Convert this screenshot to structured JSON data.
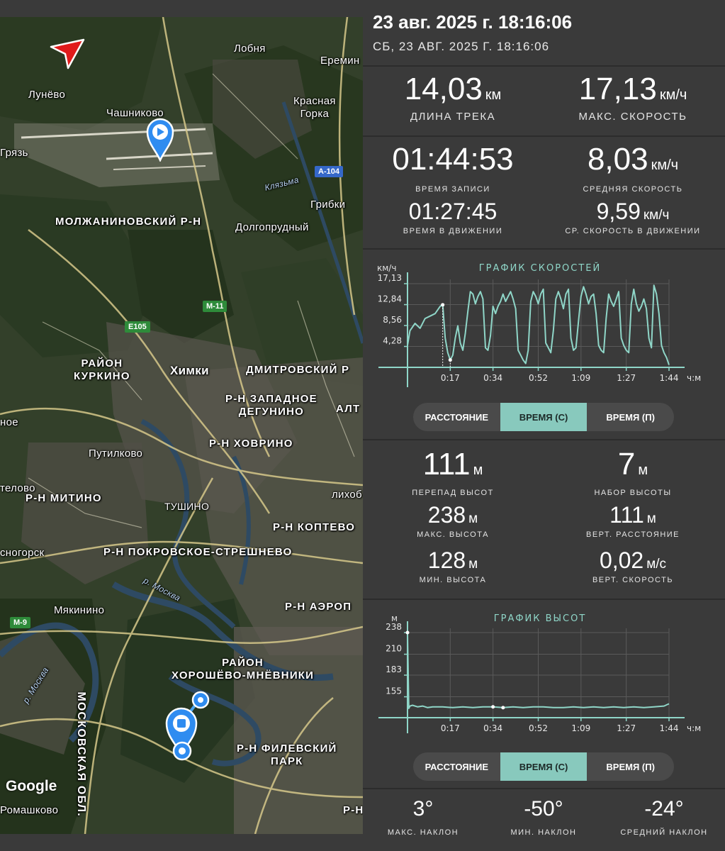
{
  "header": {
    "datetime": "23 авг. 2025 г. 18:16:06",
    "sub_datetime": "СБ, 23 АВГ. 2025 Г. 18:16:06"
  },
  "map": {
    "labels": {
      "lobnya": "Лобня",
      "eremino": "Еремин",
      "lunevo": "Лунёво",
      "chashnikovo": "Чашниково",
      "krasnaya_gorka": "Красная\nГорка",
      "gryaz": "Грязь",
      "klyazma": "Клязьма",
      "gribki": "Грибки",
      "molzhaninovsky": "МОЛЖАНИНОВСКИЙ Р-Н",
      "dolgoprudny": "Долгопрудный",
      "kurkino": "РАЙОН\nКУРКИНО",
      "khimki": "Химки",
      "dmitrovsky": "ДМИТРОВСКИЙ Р",
      "zapadnoe_degunino": "Р-Н ЗАПАДНОЕ\nДЕГУНИНО",
      "alt": "АЛТ",
      "noe": "ное",
      "putilkovo": "Путилково",
      "khovrino": "Р-Н ХОВРИНО",
      "telovo": "телово",
      "mitino": "Р-Н МИТИНО",
      "likhob": "лихоб",
      "tushino": "ТУШИНО",
      "koptevo": "Р-Н КОПТЕВО",
      "snogorsk": "сногорск",
      "pokrovskoe": "Р-Н ПОКРОВСКОЕ-СТРЕШНЕВО",
      "moskva_river": "р. Москва",
      "myakinino": "Мякинино",
      "aerop": "Р-Н АЭРОП",
      "khoroshevo": "РАЙОН\nХОРОШЁВО-МНЁВНИКИ",
      "moskva_river2": "р. Москва",
      "mosk_obl": "МОСКОВСКАЯ ОБЛ.",
      "filevsky": "Р-Н ФИЛЕВСКИЙ\nПАРК",
      "romashkovo": "Ромашково",
      "rn": "Р-Н"
    },
    "badges": {
      "a104": "A-104",
      "m11": "M-11",
      "e105": "E105",
      "m9": "M-9"
    },
    "google": "Google",
    "icons": [
      "navigation-arrow-icon",
      "start-marker-icon",
      "stop-marker-icon"
    ]
  },
  "stats": {
    "track_length": {
      "value": "14,03",
      "unit": "км",
      "label": "ДЛИНА ТРЕКА"
    },
    "max_speed": {
      "value": "17,13",
      "unit": "км/ч",
      "label": "МАКС. СКОРОСТЬ"
    },
    "record_time": {
      "value": "01:44:53",
      "unit": "",
      "label": "ВРЕМЯ ЗАПИСИ"
    },
    "avg_speed": {
      "value": "8,03",
      "unit": "км/ч",
      "label": "СРЕДНЯЯ СКОРОСТЬ"
    },
    "moving_time": {
      "value": "01:27:45",
      "unit": "",
      "label": "ВРЕМЯ В ДВИЖЕНИИ"
    },
    "avg_moving_speed": {
      "value": "9,59",
      "unit": "км/ч",
      "label": "СР. СКОРОСТЬ В ДВИЖЕНИИ"
    }
  },
  "speed_chart": {
    "title": "ГРАФИК СКОРОСТЕЙ",
    "y_unit": "км/ч",
    "x_unit": "ч:м",
    "y_ticks": [
      "17,13",
      "12,84",
      "8,56",
      "4,28"
    ],
    "x_ticks": [
      "0:17",
      "0:34",
      "0:52",
      "1:09",
      "1:27",
      "1:44"
    ]
  },
  "speed_tabs": [
    "РАССТОЯНИЕ",
    "ВРЕМЯ (С)",
    "ВРЕМЯ (П)"
  ],
  "elevation": {
    "diff": {
      "value": "111",
      "unit": "м",
      "label": "ПЕРЕПАД ВЫСОТ"
    },
    "gain": {
      "value": "7",
      "unit": "м",
      "label": "НАБОР ВЫСОТЫ"
    },
    "max": {
      "value": "238",
      "unit": "м",
      "label": "МАКС. ВЫСОТА"
    },
    "vdist": {
      "value": "111",
      "unit": "м",
      "label": "ВЕРТ. РАССТОЯНИЕ"
    },
    "min": {
      "value": "128",
      "unit": "м",
      "label": "МИН. ВЫСОТА"
    },
    "vspeed": {
      "value": "0,02",
      "unit": "м/с",
      "label": "ВЕРТ. СКОРОСТЬ"
    }
  },
  "elevation_chart": {
    "title": "ГРАФИК ВЫСОТ",
    "y_unit": "м",
    "x_unit": "ч:м",
    "y_ticks": [
      "238",
      "210",
      "183",
      "155"
    ],
    "x_ticks": [
      "0:17",
      "0:34",
      "0:52",
      "1:09",
      "1:27",
      "1:44"
    ]
  },
  "elevation_tabs": [
    "РАССТОЯНИЕ",
    "ВРЕМЯ (С)",
    "ВРЕМЯ (П)"
  ],
  "active_tab_index": 1,
  "slopes": {
    "max": {
      "value": "3°",
      "label": "МАКС. НАКЛОН"
    },
    "min": {
      "value": "-50°",
      "label": "МИН. НАКЛОН"
    },
    "avg": {
      "value": "-24°",
      "label": "СРЕДНИЙ НАКЛОН"
    }
  },
  "chart_data": [
    {
      "type": "line",
      "title": "ГРАФИК СКОРОСТЕЙ",
      "ylabel": "км/ч",
      "xlabel": "ч:м",
      "ylim": [
        0,
        17.13
      ],
      "x_range": [
        "0:00",
        "1:44"
      ],
      "y_ticks": [
        4.28,
        8.56,
        12.84,
        17.13
      ],
      "x_ticks": [
        "0:17",
        "0:34",
        "0:52",
        "1:09",
        "1:27",
        "1:44"
      ],
      "series": [
        {
          "x_minutes": [
            0,
            1,
            3,
            5,
            7,
            9,
            11,
            13,
            14,
            15,
            16,
            17,
            18,
            19,
            20,
            21,
            22,
            23,
            24,
            25,
            26,
            27,
            28,
            29,
            30,
            31,
            32,
            33,
            34,
            35,
            36,
            37,
            38,
            39,
            40,
            41,
            42,
            43,
            44,
            45,
            46,
            47,
            48,
            49,
            50,
            51,
            52,
            53,
            54,
            55,
            56,
            57,
            58,
            59,
            60,
            61,
            62,
            63,
            64,
            65,
            66,
            67,
            68,
            69,
            70,
            71,
            72,
            73,
            74,
            75,
            76,
            77,
            78,
            79,
            80,
            81,
            82,
            83,
            84,
            85,
            86,
            87,
            88,
            89,
            90,
            91,
            92,
            93,
            94,
            95,
            96,
            97,
            98,
            99,
            100,
            101,
            102,
            103,
            104
          ],
          "values": [
            4.5,
            7.5,
            9.0,
            8.0,
            10.0,
            10.5,
            11.0,
            12.5,
            12.8,
            6.0,
            3.0,
            1.5,
            2.5,
            6.0,
            8.5,
            5.0,
            3.5,
            7.0,
            11.5,
            15.5,
            15.0,
            13.0,
            14.5,
            15.5,
            14.0,
            4.0,
            3.5,
            6.5,
            12.5,
            11.0,
            12.5,
            13.5,
            15.0,
            13.5,
            14.5,
            15.5,
            14.0,
            12.0,
            3.5,
            2.5,
            1.5,
            0.8,
            3.5,
            13.5,
            15.5,
            14.5,
            13.0,
            15.0,
            16.0,
            5.0,
            4.0,
            3.0,
            7.5,
            14.0,
            15.5,
            14.0,
            12.0,
            15.0,
            16.0,
            6.0,
            3.5,
            4.0,
            9.5,
            14.5,
            16.5,
            15.0,
            13.0,
            14.5,
            15.0,
            11.0,
            4.5,
            3.5,
            3.0,
            10.0,
            15.0,
            13.5,
            12.5,
            14.0,
            15.5,
            6.0,
            4.5,
            3.5,
            3.0,
            13.0,
            16.0,
            13.0,
            11.5,
            12.5,
            14.0,
            12.0,
            6.0,
            4.0,
            16.8,
            15.0,
            11.0,
            4.5,
            3.0,
            2.0,
            0.5
          ]
        }
      ]
    },
    {
      "type": "line",
      "title": "ГРАФИК ВЫСОТ",
      "ylabel": "м",
      "xlabel": "ч:м",
      "ylim": [
        128,
        238
      ],
      "x_range": [
        "0:00",
        "1:44"
      ],
      "y_ticks": [
        155,
        183,
        210,
        238
      ],
      "x_ticks": [
        "0:17",
        "0:34",
        "0:52",
        "1:09",
        "1:27",
        "1:44"
      ],
      "series": [
        {
          "x_minutes": [
            0,
            0.5,
            1,
            2,
            4,
            6,
            8,
            10,
            14,
            18,
            22,
            26,
            30,
            34,
            38,
            42,
            46,
            50,
            54,
            58,
            62,
            66,
            70,
            74,
            78,
            82,
            86,
            90,
            94,
            98,
            102,
            104
          ],
          "values": [
            238,
            140,
            143,
            144,
            142,
            143,
            141,
            142,
            142,
            141,
            142,
            141,
            142,
            142,
            141,
            142,
            141,
            142,
            142,
            141,
            141,
            142,
            141,
            142,
            141,
            142,
            141,
            142,
            141,
            142,
            143,
            146
          ]
        }
      ]
    }
  ]
}
